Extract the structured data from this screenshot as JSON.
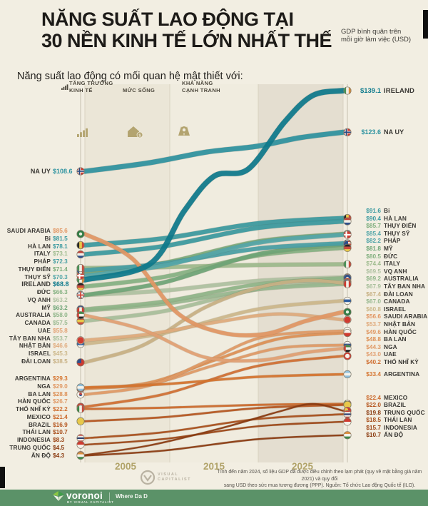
{
  "header": {
    "title_line1": "NĂNG SUẤT LAO ĐỘNG TẠI",
    "title_line2": "30 NỀN KINH TẾ LỚN NHẤT THẾ",
    "unit_note": "GDP bình quân trên mỗi giờ làm việc (USD)"
  },
  "intro": {
    "text": "Năng suất lao động có mối quan hệ mật thiết với:",
    "factors": [
      {
        "lines": [
          "TĂNG TRƯỞNG",
          "KINH TẾ"
        ],
        "icon": "bar-chart-icon"
      },
      {
        "lines": [
          "MỨC SỐNG"
        ],
        "icon": "house-coin-icon"
      },
      {
        "lines": [
          "KHẢ NĂNG",
          "CẠNH TRANH"
        ],
        "icon": "medal-icon"
      }
    ]
  },
  "chart_data": {
    "type": "line",
    "subtype": "bump-flow",
    "x_ticks": [
      "2005",
      "2015",
      "2025"
    ],
    "value_unit": "USD (GDP per hour worked)",
    "series": [
      {
        "name": "IRELAND",
        "flag": "ireland",
        "color": "#0d7a8c",
        "start": 68.8,
        "end": 139.1,
        "start_label": "$68.8",
        "end_label": "$139.1"
      },
      {
        "name": "NA UY",
        "flag": "norway",
        "color": "#2e93a0",
        "start": 108.6,
        "end": 123.6,
        "start_label": "$108.6",
        "end_label": "$123.6"
      },
      {
        "name": "Bỉ",
        "flag": "belgium",
        "color": "#3b9aa0",
        "start": 81.5,
        "end": 91.6,
        "start_label": "$81.5",
        "end_label": "$91.6"
      },
      {
        "name": "HÀ LAN",
        "flag": "netherlands",
        "color": "#3b9aa0",
        "start": 78.1,
        "end": 90.4,
        "start_label": "$78.1",
        "end_label": "$90.4"
      },
      {
        "name": "THỤY ĐIỂN",
        "flag": "sweden",
        "color": "#7cad7c",
        "start": 71.4,
        "end": 85.7,
        "start_label": "$71.4",
        "end_label": "$85.7"
      },
      {
        "name": "THỤY SỸ",
        "flag": "switzerland",
        "color": "#55a7a9",
        "start": 70.3,
        "end": 85.4,
        "start_label": "$70.3",
        "end_label": "$85.4"
      },
      {
        "name": "PHÁP",
        "flag": "france",
        "color": "#49a0a5",
        "start": 72.3,
        "end": 82.2,
        "start_label": "$72.3",
        "end_label": "$82.2"
      },
      {
        "name": "MỸ",
        "flag": "usa",
        "color": "#6fa577",
        "start": 63.2,
        "end": 81.8,
        "start_label": "$63.2",
        "end_label": "$81.8"
      },
      {
        "name": "ĐỨC",
        "flag": "germany",
        "color": "#86b283",
        "start": 66.3,
        "end": 80.5,
        "start_label": "$66.3",
        "end_label": "$80.5"
      },
      {
        "name": "ITALY",
        "flag": "italy",
        "color": "#9dbb8d",
        "start": 73.1,
        "end": 74.4,
        "start_label": "$73.1",
        "end_label": "$74.4"
      },
      {
        "name": "VQ ANH",
        "flag": "uk",
        "color": "#afc2a2",
        "start": 63.2,
        "end": 69.5,
        "start_label": "$63.2",
        "end_label": "$69.5"
      },
      {
        "name": "AUSTRALIA",
        "flag": "australia",
        "color": "#8fb589",
        "start": 58.0,
        "end": 69.2,
        "start_label": "$58.0",
        "end_label": "$69.2"
      },
      {
        "name": "TÂY BAN NHA",
        "flag": "spain",
        "color": "#a8bf9b",
        "start": 53.7,
        "end": 67.9,
        "start_label": "$53.7",
        "end_label": "$67.9"
      },
      {
        "name": "ĐÀI LOAN",
        "flag": "taiwan",
        "color": "#c8b184",
        "start": 38.5,
        "end": 67.4,
        "start_label": "$38.5",
        "end_label": "$67.4"
      },
      {
        "name": "CANADA",
        "flag": "canada",
        "color": "#98b990",
        "start": 57.5,
        "end": 67.0,
        "start_label": "$57.5",
        "end_label": "$67.0"
      },
      {
        "name": "ISRAEL",
        "flag": "israel",
        "color": "#cdb98c",
        "start": 45.3,
        "end": 60.8,
        "start_label": "$45.3",
        "end_label": "$60.8"
      },
      {
        "name": "SAUDI ARABIA",
        "flag": "saudi",
        "color": "#e29764",
        "start": 85.6,
        "end": 56.6,
        "start_label": "$85.6",
        "end_label": "$56.6"
      },
      {
        "name": "NHẬT BẢN",
        "flag": "japan",
        "color": "#e0ab7d",
        "start": 46.6,
        "end": 53.7,
        "start_label": "$46.6",
        "end_label": "$53.7"
      },
      {
        "name": "HÀN QUỐC",
        "flag": "korea",
        "color": "#e09a66",
        "start": 26.7,
        "end": 49.6,
        "start_label": "$26.7",
        "end_label": "$49.6"
      },
      {
        "name": "BA LAN",
        "flag": "poland",
        "color": "#dd9055",
        "start": 28.8,
        "end": 48.8,
        "start_label": "$28.8",
        "end_label": "$48.8"
      },
      {
        "name": "NGA",
        "flag": "russia",
        "color": "#e09a66",
        "start": 29.0,
        "end": 44.3,
        "start_label": "$29.0",
        "end_label": "$44.3"
      },
      {
        "name": "UAE",
        "flag": "uae",
        "color": "#e2a173",
        "start": 55.8,
        "end": 43.0,
        "start_label": "$55.8",
        "end_label": "$43.0"
      },
      {
        "name": "THỔ NHĨ KỲ",
        "flag": "turkey",
        "color": "#d07033",
        "start": 22.2,
        "end": 40.2,
        "start_label": "$22.2",
        "end_label": "$40.2"
      },
      {
        "name": "ARGENTINA",
        "flag": "argentina",
        "color": "#d5742f",
        "start": 29.3,
        "end": 33.4,
        "start_label": "$29.3",
        "end_label": "$33.4"
      },
      {
        "name": "MEXICO",
        "flag": "mexico",
        "color": "#cc6a2d",
        "start": 21.4,
        "end": 22.4,
        "start_label": "$21.4",
        "end_label": "$22.4"
      },
      {
        "name": "BRAZIL",
        "flag": "brazil",
        "color": "#b5561f",
        "start": 16.9,
        "end": 22.0,
        "start_label": "$16.9",
        "end_label": "$22.0"
      },
      {
        "name": "TRUNG QUỐC",
        "flag": "china",
        "color": "#8a3a0f",
        "start": 4.5,
        "end": 19.8,
        "start_label": "$4.5",
        "end_label": "$19.8"
      },
      {
        "name": "THÁI LAN",
        "flag": "thailand",
        "color": "#a84e1a",
        "start": 10.7,
        "end": 18.5,
        "start_label": "$10.7",
        "end_label": "$18.5"
      },
      {
        "name": "INDONESIA",
        "flag": "indonesia",
        "color": "#9c4414",
        "start": 8.3,
        "end": 15.7,
        "start_label": "$8.3",
        "end_label": "$15.7"
      },
      {
        "name": "ẤN ĐỘ",
        "flag": "india",
        "color": "#8a3a0f",
        "start": 4.3,
        "end": 10.7,
        "start_label": "$4.3",
        "end_label": "$10.7"
      }
    ],
    "left_order": [
      "NA UY",
      "SAUDI ARABIA",
      "Bỉ",
      "HÀ LAN",
      "ITALY",
      "PHÁP",
      "THỤY ĐIỂN",
      "THỤY SỸ",
      "IRELAND",
      "ĐỨC",
      "VQ ANH",
      "MỸ",
      "AUSTRALIA",
      "CANADA",
      "UAE",
      "TÂY BAN NHA",
      "NHẬT BẢN",
      "ISRAEL",
      "ĐÀI LOAN",
      "ARGENTINA",
      "NGA",
      "BA LAN",
      "HÀN QUỐC",
      "THỔ NHĨ KỲ",
      "MEXICO",
      "BRAZIL",
      "THÁI LAN",
      "INDONESIA",
      "TRUNG QUỐC",
      "ẤN ĐỘ"
    ],
    "right_order": [
      "IRELAND",
      "NA UY",
      "Bỉ",
      "HÀ LAN",
      "THỤY ĐIỂN",
      "THỤY SỸ",
      "PHÁP",
      "MỸ",
      "ĐỨC",
      "ITALY",
      "VQ ANH",
      "AUSTRALIA",
      "TÂY BAN NHA",
      "ĐÀI LOAN",
      "CANADA",
      "ISRAEL",
      "SAUDI ARABIA",
      "NHẬT BẢN",
      "HÀN QUỐC",
      "BA LAN",
      "NGA",
      "UAE",
      "THỔ NHĨ KỲ",
      "ARGENTINA",
      "MEXICO",
      "BRAZIL",
      "TRUNG QUỐC",
      "THÁI LAN",
      "INDONESIA",
      "ẤN ĐỘ"
    ]
  },
  "footer": {
    "note_line1": "Tính đến năm 2024, số liệu GDP đã được điều chỉnh theo lạm phát (quy về mặt bằng giá năm 2021) và quy đổi",
    "note_line2": "sang USD theo sức mua tương đương (PPP). Nguồn: Tổ chức Lao động Quốc tế (ILO).",
    "visual_capitalist_line1": "VISUAL",
    "visual_capitalist_line2": "CAPITALIST",
    "brand": "voronoi",
    "brand_sub": "BY VISUAL CAPITALIST",
    "tagline": "Where Da D"
  }
}
